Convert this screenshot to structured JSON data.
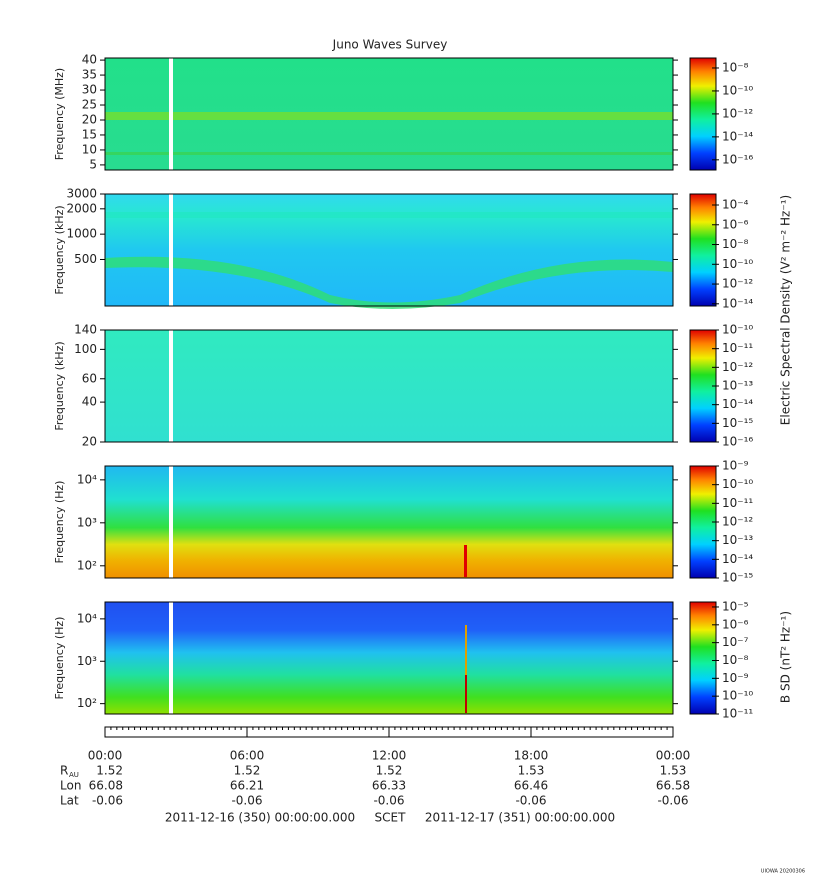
{
  "chart_data": {
    "type": "spectrogram",
    "title": "Juno Waves Survey",
    "panels": [
      {
        "ylabel": "Frequency (MHz)",
        "ylim": [
          3.3,
          40.7
        ],
        "log": false,
        "yticks": [
          5,
          10,
          15,
          20,
          25,
          30,
          35,
          40
        ],
        "clim": [
          1.3e-17,
          7.4e-08
        ],
        "cticks": [
          {
            "value": 1e-08,
            "label": "10⁻⁸"
          },
          {
            "value": 1e-10,
            "label": "10⁻¹⁰"
          },
          {
            "value": 1e-12,
            "label": "10⁻¹²"
          },
          {
            "value": 1e-14,
            "label": "10⁻¹⁴"
          },
          {
            "value": 1e-16,
            "label": "10⁻¹⁶"
          }
        ]
      },
      {
        "ylabel": "Frequency (kHz)",
        "ylim": [
          140,
          3000
        ],
        "log": true,
        "yticks": [
          500,
          1000,
          2000,
          3000
        ],
        "clim": [
          6e-15,
          0.0013
        ],
        "cticks": [
          {
            "value": 0.0001,
            "label": "10⁻⁴"
          },
          {
            "value": 1e-06,
            "label": "10⁻⁶"
          },
          {
            "value": 1e-08,
            "label": "10⁻⁸"
          },
          {
            "value": 1e-10,
            "label": "10⁻¹⁰"
          },
          {
            "value": 1e-12,
            "label": "10⁻¹²"
          },
          {
            "value": 1e-14,
            "label": "10⁻¹⁴"
          }
        ]
      },
      {
        "ylabel": "Frequency (kHz)",
        "ylim": [
          20,
          140
        ],
        "log": true,
        "yticks": [
          20,
          40,
          60,
          100,
          140
        ],
        "clim": [
          1e-16,
          1e-10
        ],
        "cticks": [
          {
            "value": 1e-10,
            "label": "10⁻¹⁰"
          },
          {
            "value": 1e-11,
            "label": "10⁻¹¹"
          },
          {
            "value": 1e-12,
            "label": "10⁻¹²"
          },
          {
            "value": 1e-13,
            "label": "10⁻¹³"
          },
          {
            "value": 1e-14,
            "label": "10⁻¹⁴"
          },
          {
            "value": 1e-15,
            "label": "10⁻¹⁵"
          },
          {
            "value": 1e-16,
            "label": "10⁻¹⁶"
          }
        ]
      },
      {
        "ylabel": "Frequency (Hz)",
        "ylim": [
          52,
          21000
        ],
        "log": true,
        "yticks": [
          {
            "value": 100,
            "label": "10²"
          },
          {
            "value": 1000,
            "label": "10³"
          },
          {
            "value": 10000,
            "label": "10⁴"
          }
        ],
        "clim": [
          1e-15,
          1e-09
        ],
        "cticks": [
          {
            "value": 1e-09,
            "label": "10⁻⁹"
          },
          {
            "value": 1e-10,
            "label": "10⁻¹⁰"
          },
          {
            "value": 1e-11,
            "label": "10⁻¹¹"
          },
          {
            "value": 1e-12,
            "label": "10⁻¹²"
          },
          {
            "value": 1e-13,
            "label": "10⁻¹³"
          },
          {
            "value": 1e-14,
            "label": "10⁻¹⁴"
          },
          {
            "value": 1e-15,
            "label": "10⁻¹⁵"
          }
        ]
      },
      {
        "ylabel": "Frequency (Hz)",
        "ylim": [
          57,
          25000
        ],
        "log": true,
        "yticks": [
          {
            "value": 100,
            "label": "10²"
          },
          {
            "value": 1000,
            "label": "10³"
          },
          {
            "value": 10000,
            "label": "10⁴"
          }
        ],
        "clim": [
          1e-11,
          1.9e-05
        ],
        "cticks": [
          {
            "value": 1e-05,
            "label": "10⁻⁵"
          },
          {
            "value": 1e-06,
            "label": "10⁻⁶"
          },
          {
            "value": 1e-07,
            "label": "10⁻⁷"
          },
          {
            "value": 1e-08,
            "label": "10⁻⁸"
          },
          {
            "value": 1e-09,
            "label": "10⁻⁹"
          },
          {
            "value": 1e-10,
            "label": "10⁻¹⁰"
          },
          {
            "value": 1e-11,
            "label": "10⁻¹¹"
          }
        ]
      }
    ],
    "colorbar_label_e": "Electric Spectral Density (V² m⁻² Hz⁻¹)",
    "colorbar_label_b": "B SD (nT² Hz⁻¹)",
    "xlim": [
      0,
      24
    ],
    "xticks": [
      {
        "value": 0,
        "label": "00:00"
      },
      {
        "value": 6,
        "label": "06:00"
      },
      {
        "value": 12,
        "label": "12:00"
      },
      {
        "value": 18,
        "label": "18:00"
      },
      {
        "value": 24,
        "label": "00:00"
      }
    ],
    "ephemeris": [
      {
        "label": "R",
        "sub": "AU",
        "values": [
          1.52,
          1.52,
          1.52,
          1.53,
          1.53
        ]
      },
      {
        "label": "Lon",
        "values": [
          66.08,
          66.21,
          66.33,
          66.46,
          66.58
        ]
      },
      {
        "label": "Lat",
        "values": [
          -0.06,
          -0.06,
          -0.06,
          -0.06,
          -0.06
        ]
      }
    ],
    "start": "2011-12-16 (350) 00:00:00.000",
    "frame": "SCET",
    "end": "2011-12-17 (351) 00:00:00.000",
    "stamp": "UIOWA 20200306"
  }
}
